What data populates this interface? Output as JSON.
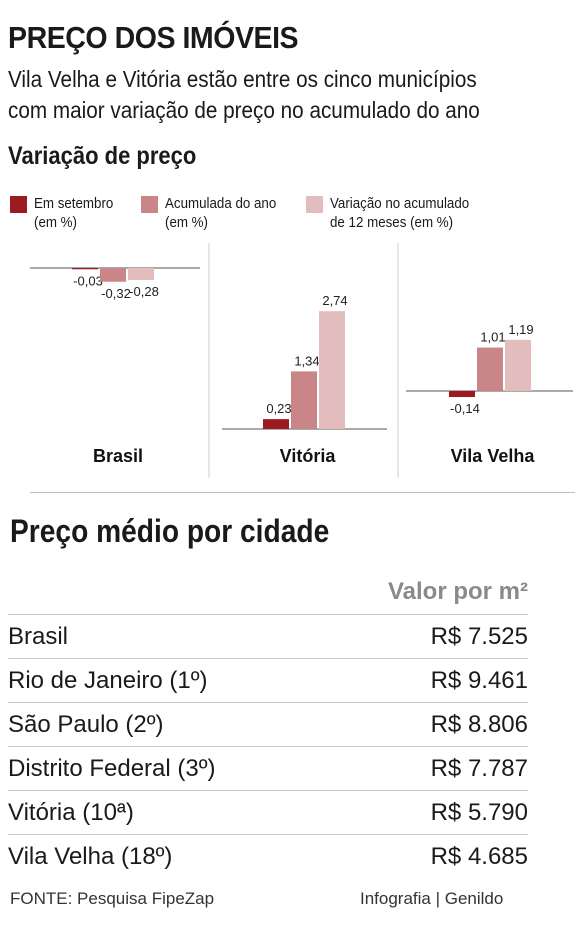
{
  "header": {
    "title": "PREÇO DOS IMÓVEIS",
    "subtitle_line1": "Vila Velha e Vitória estão entre os cinco municípios",
    "subtitle_line2": "com maior variação de preço no acumulado do ano",
    "section1": "Variação de preço"
  },
  "legend": [
    {
      "line1": "Em setembro",
      "line2": "(em %)",
      "color": "#9b1b1e"
    },
    {
      "line1": "Acumulada do ano",
      "line2": "(em %)",
      "color": "#c98587"
    },
    {
      "line1": "Variação no acumulado",
      "line2": "de 12 meses (em %)",
      "color": "#e3bdbd"
    }
  ],
  "chart_data": [
    {
      "type": "bar",
      "title": "Brasil",
      "categories": [
        "Em setembro",
        "Acumulada do ano",
        "Variação no acumulado de 12 meses"
      ],
      "values": [
        -0.03,
        -0.32,
        -0.28
      ],
      "labels": [
        "-0,03",
        "-0,32",
        "-0,28"
      ]
    },
    {
      "type": "bar",
      "title": "Vitória",
      "categories": [
        "Em setembro",
        "Acumulada do ano",
        "Variação no acumulado de 12 meses"
      ],
      "values": [
        0.23,
        1.34,
        2.74
      ],
      "labels": [
        "0,23",
        "1,34",
        "2,74"
      ]
    },
    {
      "type": "bar",
      "title": "Vila Velha",
      "categories": [
        "Em setembro",
        "Acumulada do ano",
        "Variação no acumulado de 12 meses"
      ],
      "values": [
        -0.14,
        1.01,
        1.19
      ],
      "labels": [
        "-0,14",
        "1,01",
        "1,19"
      ]
    }
  ],
  "table": {
    "title": "Preço médio por cidade",
    "column_header": "Valor por m²",
    "rows": [
      {
        "city": "Brasil",
        "value": "R$ 7.525"
      },
      {
        "city": "Rio de Janeiro (1º)",
        "value": "R$ 9.461"
      },
      {
        "city": "São Paulo (2º)",
        "value": "R$ 8.806"
      },
      {
        "city": "Distrito Federal (3º)",
        "value": "R$ 7.787"
      },
      {
        "city": "Vitória (10ª)",
        "value": "R$ 5.790"
      },
      {
        "city": "Vila Velha (18º)",
        "value": "R$ 4.685"
      }
    ]
  },
  "footer": {
    "source": "FONTE: Pesquisa FipeZap",
    "credit": "Infografia | Genildo"
  }
}
